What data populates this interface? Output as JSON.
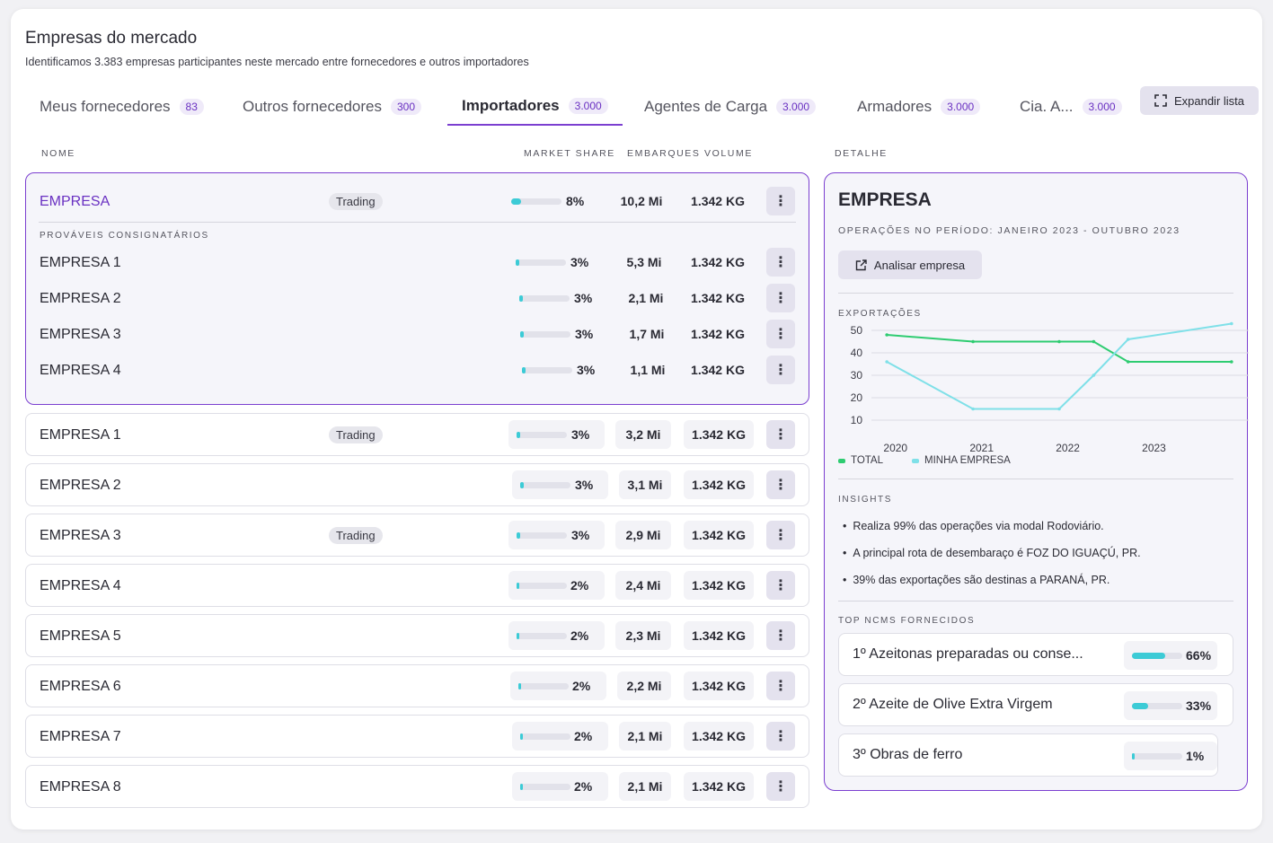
{
  "header": {
    "title": "Empresas do mercado",
    "subtitle": "Identificamos 3.383 empresas participantes neste mercado entre fornecedores e outros importadores"
  },
  "tabs": [
    {
      "label": "Meus fornecedores",
      "count": "83"
    },
    {
      "label": "Outros fornecedores",
      "count": "300"
    },
    {
      "label": "Importadores",
      "count": "3.000"
    },
    {
      "label": "Agentes de Carga",
      "count": "3.000"
    },
    {
      "label": "Armadores",
      "count": "3.000"
    },
    {
      "label": "Cia. A...",
      "count": "3.000"
    }
  ],
  "expand_label": "Expandir lista",
  "columns": {
    "name": "NOME",
    "share": "MARKET SHARE",
    "shipments": "EMBARQUES",
    "volume": "VOLUME",
    "detail": "DETALHE"
  },
  "selected_group": {
    "company": {
      "name": "EMPRESA",
      "tag": "Trading",
      "share": "8%",
      "share_value": 8,
      "shipments": "10,2 Mi",
      "volume": "1.342 KG"
    },
    "consignees_label": "PROVÁVEIS CONSIGNATÁRIOS",
    "consignees": [
      {
        "name": "EMPRESA 1",
        "share": "3%",
        "share_value": 3,
        "shipments": "5,3 Mi",
        "volume": "1.342 KG"
      },
      {
        "name": "EMPRESA 2",
        "share": "3%",
        "share_value": 3,
        "shipments": "2,1 Mi",
        "volume": "1.342 KG"
      },
      {
        "name": "EMPRESA 3",
        "share": "3%",
        "share_value": 3,
        "shipments": "1,7 Mi",
        "volume": "1.342 KG"
      },
      {
        "name": "EMPRESA 4",
        "share": "3%",
        "share_value": 3,
        "shipments": "1,1 Mi",
        "volume": "1.342 KG"
      }
    ]
  },
  "rows": [
    {
      "name": "EMPRESA 1",
      "tag": "Trading",
      "share": "3%",
      "share_value": 3,
      "shipments": "3,2 Mi",
      "volume": "1.342 KG"
    },
    {
      "name": "EMPRESA 2",
      "tag": "",
      "share": "3%",
      "share_value": 3,
      "shipments": "3,1 Mi",
      "volume": "1.342 KG"
    },
    {
      "name": "EMPRESA 3",
      "tag": "Trading",
      "share": "3%",
      "share_value": 3,
      "shipments": "2,9 Mi",
      "volume": "1.342 KG"
    },
    {
      "name": "EMPRESA 4",
      "tag": "",
      "share": "2%",
      "share_value": 2,
      "shipments": "2,4 Mi",
      "volume": "1.342 KG"
    },
    {
      "name": "EMPRESA 5",
      "tag": "",
      "share": "2%",
      "share_value": 2,
      "shipments": "2,3 Mi",
      "volume": "1.342 KG"
    },
    {
      "name": "EMPRESA 6",
      "tag": "",
      "share": "2%",
      "share_value": 2,
      "shipments": "2,2 Mi",
      "volume": "1.342 KG"
    },
    {
      "name": "EMPRESA 7",
      "tag": "",
      "share": "2%",
      "share_value": 2,
      "shipments": "2,1 Mi",
      "volume": "1.342 KG"
    },
    {
      "name": "EMPRESA 8",
      "tag": "",
      "share": "2%",
      "share_value": 2,
      "shipments": "2,1 Mi",
      "volume": "1.342 KG"
    }
  ],
  "detail": {
    "title": "EMPRESA",
    "period": "OPERAÇÕES NO PERÍODO: JANEIRO 2023 - OUTUBRO 2023",
    "analyze_label": "Analisar empresa",
    "exports_label": "EXPORTAÇÕES",
    "insights_label": "INSIGHTS",
    "insights": [
      "Realiza 99% das operações via modal Rodoviário.",
      "A principal rota de desembaraço é FOZ DO IGUAÇÚ, PR.",
      "39% das exportações são destinas a PARANÁ, PR."
    ],
    "ncm_label": "TOP NCMS FORNECIDOS",
    "ncms": [
      {
        "label": "1º Azeitonas preparadas ou conse...",
        "share": "66%",
        "share_value": 66
      },
      {
        "label": "2º Azeite de Olive Extra Virgem",
        "share": "33%",
        "share_value": 33
      },
      {
        "label": "3º Obras de ferro",
        "share": "1%",
        "share_value": 1
      }
    ]
  },
  "colors": {
    "accent": "#7b3fd0",
    "total": "#2ecc71",
    "mine": "#7fe0e8",
    "bar": "#3ccbd6"
  },
  "chart_data": {
    "type": "line",
    "title": "EXPORTAÇÕES",
    "categories": [
      "2020",
      "2021",
      "2022",
      "2023"
    ],
    "x": [
      2019.9,
      2020.9,
      2021.9,
      2022.3,
      2022.7,
      2023.9
    ],
    "series": [
      {
        "name": "TOTAL",
        "values": [
          48,
          45,
          45,
          45,
          36,
          36
        ]
      },
      {
        "name": "MINHA EMPRESA",
        "values": [
          36,
          15,
          15,
          30,
          46,
          53
        ]
      }
    ],
    "yticks": [
      10,
      20,
      30,
      40,
      50
    ],
    "ylim": [
      10,
      50
    ],
    "xlim": [
      2019.7,
      2024.1
    ],
    "legend": "bottom-left"
  }
}
